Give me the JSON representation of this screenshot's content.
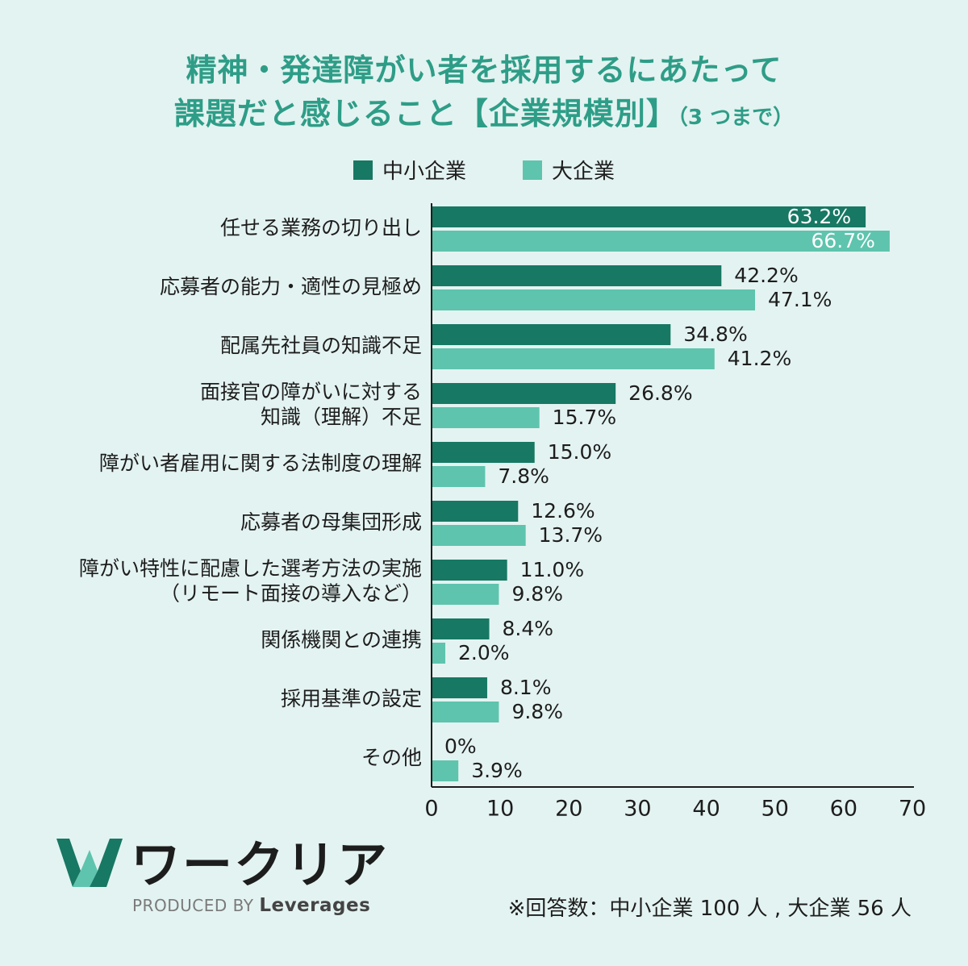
{
  "title": {
    "line1": "精神・発達障がい者を採用するにあたって",
    "line2": "課題だと感じること【企業規模別】",
    "line2_suffix": "（3 つまで）"
  },
  "colors": {
    "sme": "#177863",
    "large": "#5ec4ad"
  },
  "chart_data": {
    "type": "bar",
    "orientation": "horizontal",
    "categories": [
      [
        "任せる業務の切り出し"
      ],
      [
        "応募者の能力・適性の見極め"
      ],
      [
        "配属先社員の知識不足"
      ],
      [
        "面接官の障がいに対する",
        "知識（理解）不足"
      ],
      [
        "障がい者雇用に関する法制度の理解"
      ],
      [
        "応募者の母集団形成"
      ],
      [
        "障がい特性に配慮した選考方法の実施",
        "（リモート面接の導入など）"
      ],
      [
        "関係機関との連携"
      ],
      [
        "採用基準の設定"
      ],
      [
        "その他"
      ]
    ],
    "series": [
      {
        "name": "中小企業",
        "values": [
          63.2,
          42.2,
          34.8,
          26.8,
          15.0,
          12.6,
          11.0,
          8.4,
          8.1,
          0
        ],
        "labels": [
          "63.2%",
          "42.2%",
          "34.8%",
          "26.8%",
          "15.0%",
          "12.6%",
          "11.0%",
          "8.4%",
          "8.1%",
          "0%"
        ]
      },
      {
        "name": "大企業",
        "values": [
          66.7,
          47.1,
          41.2,
          15.7,
          7.8,
          13.7,
          9.8,
          2.0,
          9.8,
          3.9
        ],
        "labels": [
          "66.7%",
          "47.1%",
          "41.2%",
          "15.7%",
          "7.8%",
          "13.7%",
          "9.8%",
          "2.0%",
          "9.8%",
          "3.9%"
        ]
      }
    ],
    "xlim": [
      0,
      70
    ],
    "xticks": [
      "0",
      "10",
      "20",
      "30",
      "40",
      "50",
      "60",
      "70"
    ],
    "grid": false,
    "legend": "top-center"
  },
  "footer": {
    "logo_text": "ワークリア",
    "produced_by": "PRODUCED BY",
    "brand": "Leverages",
    "note": "※回答数：中小企業 100 人 , 大企業 56 人"
  },
  "icons": {
    "logo": "w-logo-icon"
  }
}
